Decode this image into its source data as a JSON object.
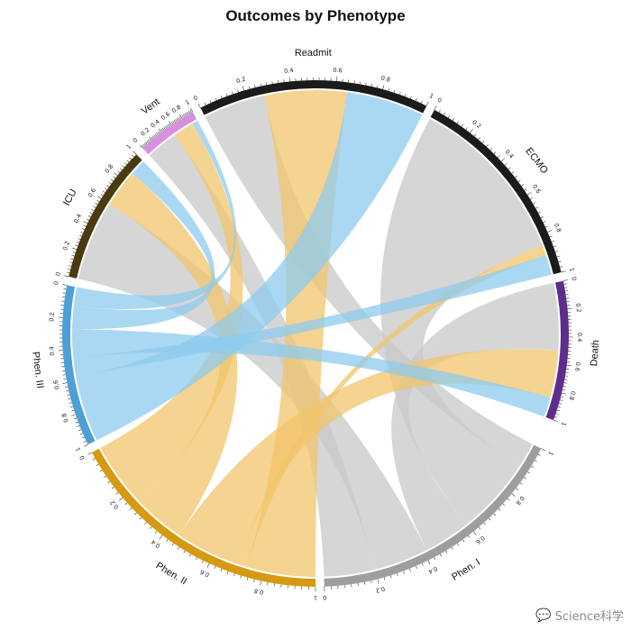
{
  "chart_data": {
    "type": "chord",
    "title": "Outcomes by Phenotype",
    "sectors": [
      {
        "name": "Readmit",
        "color": "#1b1b1b",
        "group": "outcome"
      },
      {
        "name": "ECMO",
        "color": "#1b1b1b",
        "group": "outcome"
      },
      {
        "name": "Death",
        "color": "#5e2d8c",
        "group": "outcome"
      },
      {
        "name": "Phen. I",
        "color": "#9e9e9e",
        "group": "phenotype"
      },
      {
        "name": "Phen. II",
        "color": "#d69a12",
        "group": "phenotype"
      },
      {
        "name": "Phen. III",
        "color": "#4d9fd6",
        "group": "phenotype"
      },
      {
        "name": "ICU",
        "color": "#4a3a10",
        "group": "outcome"
      },
      {
        "name": "Vent",
        "color": "#d98ee0",
        "group": "outcome"
      }
    ],
    "axis_ticks": [
      "0",
      "0.2",
      "0.4",
      "0.6",
      "0.8",
      "1"
    ],
    "axis_range": [
      0,
      1
    ],
    "phenotype_colors": {
      "Phen. I": "#c8c8c8",
      "Phen. II": "#f2c46b",
      "Phen. III": "#8ecbee"
    },
    "links": [
      {
        "phenotype": "Phen. I",
        "outcome": "Readmit",
        "value": 0.28
      },
      {
        "phenotype": "Phen. I",
        "outcome": "ECMO",
        "value": 0.85
      },
      {
        "phenotype": "Phen. I",
        "outcome": "Death",
        "value": 0.5
      },
      {
        "phenotype": "Phen. I",
        "outcome": "ICU",
        "value": 0.6
      },
      {
        "phenotype": "Phen. I",
        "outcome": "Vent",
        "value": 0.55
      },
      {
        "phenotype": "Phen. II",
        "outcome": "Readmit",
        "value": 0.37
      },
      {
        "phenotype": "Phen. II",
        "outcome": "ECMO",
        "value": 0.05
      },
      {
        "phenotype": "Phen. II",
        "outcome": "Death",
        "value": 0.35
      },
      {
        "phenotype": "Phen. II",
        "outcome": "ICU",
        "value": 0.28
      },
      {
        "phenotype": "Phen. II",
        "outcome": "Vent",
        "value": 0.35
      },
      {
        "phenotype": "Phen. III",
        "outcome": "Readmit",
        "value": 0.35
      },
      {
        "phenotype": "Phen. III",
        "outcome": "ECMO",
        "value": 0.1
      },
      {
        "phenotype": "Phen. III",
        "outcome": "Death",
        "value": 0.15
      },
      {
        "phenotype": "Phen. III",
        "outcome": "ICU",
        "value": 0.12
      },
      {
        "phenotype": "Phen. III",
        "outcome": "Vent",
        "value": 0.1
      }
    ]
  },
  "watermark": {
    "text": "Science科学",
    "icon": "wechat-icon"
  }
}
